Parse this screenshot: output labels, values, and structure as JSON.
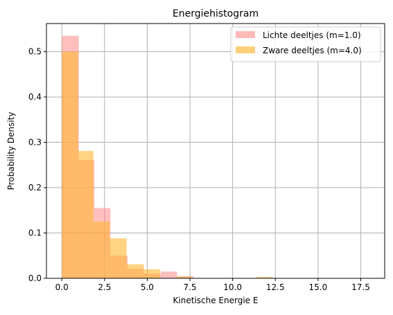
{
  "chart_data": {
    "type": "histogram",
    "title": "Energiehistogram",
    "xlabel": "Kinetische Energie E",
    "ylabel": "Probability Density",
    "xlim": [
      -0.9,
      18.9
    ],
    "ylim": [
      0,
      0.562
    ],
    "xticks": [
      0.0,
      2.5,
      5.0,
      7.5,
      10.0,
      12.5,
      15.0,
      17.5
    ],
    "xtick_labels": [
      "0.0",
      "2.5",
      "5.0",
      "7.5",
      "10.0",
      "12.5",
      "15.0",
      "17.5"
    ],
    "yticks": [
      0.0,
      0.1,
      0.2,
      0.3,
      0.4,
      0.5
    ],
    "ytick_labels": [
      "0.0",
      "0.1",
      "0.2",
      "0.3",
      "0.4",
      "0.5"
    ],
    "grid": true,
    "legend_position": "top-right",
    "series": [
      {
        "name": "Lichte deeltjes (m=1.0)",
        "color": "#ff7f7f",
        "opacity": 0.5,
        "bins": [
          [
            0.0,
            1.0,
            0.535
          ],
          [
            1.0,
            1.9,
            0.261
          ],
          [
            1.9,
            2.85,
            0.155
          ],
          [
            2.85,
            3.85,
            0.05
          ],
          [
            3.85,
            4.8,
            0.021
          ],
          [
            4.8,
            5.8,
            0.01
          ],
          [
            5.8,
            6.75,
            0.015
          ],
          [
            6.75,
            7.7,
            0.005
          ]
        ]
      },
      {
        "name": "Zware deeltjes (m=4.0)",
        "color": "#ffb732",
        "opacity": 0.6,
        "bins": [
          [
            0.0,
            0.95,
            0.5
          ],
          [
            0.95,
            1.85,
            0.281
          ],
          [
            1.85,
            2.8,
            0.125
          ],
          [
            2.8,
            3.8,
            0.088
          ],
          [
            3.8,
            4.8,
            0.031
          ],
          [
            4.8,
            5.75,
            0.02
          ],
          [
            5.75,
            6.65,
            0.0
          ],
          [
            6.65,
            7.6,
            0.003
          ],
          [
            11.4,
            12.35,
            0.003
          ]
        ]
      }
    ]
  }
}
